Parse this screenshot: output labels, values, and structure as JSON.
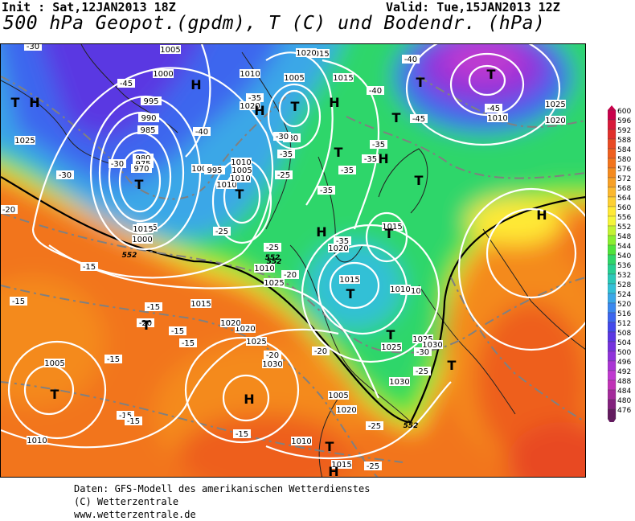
{
  "header": {
    "init": "Init : Sat,12JAN2013 18Z",
    "valid": "Valid: Tue,15JAN2013 12Z",
    "title": "500 hPa Geopot.(gpdm), T (C) und Bodendr. (hPa)"
  },
  "footer": {
    "line1": "Daten: GFS-Modell des amerikanischen Wetterdienstes",
    "line2": "(C) Wetterzentrale",
    "line3": "www.wetterzentrale.de"
  },
  "legend": {
    "levels": [
      "600",
      "596",
      "592",
      "588",
      "584",
      "580",
      "576",
      "572",
      "568",
      "564",
      "560",
      "556",
      "552",
      "548",
      "544",
      "540",
      "536",
      "532",
      "528",
      "524",
      "520",
      "516",
      "512",
      "508",
      "504",
      "500",
      "496",
      "492",
      "488",
      "484",
      "480",
      "476"
    ],
    "colors": [
      "#c8004a",
      "#d71a3a",
      "#e0302c",
      "#e84a24",
      "#ee5f1f",
      "#f2741d",
      "#f48a1f",
      "#f7a026",
      "#fbb82f",
      "#fdd034",
      "#ffe936",
      "#f4f53a",
      "#c2f232",
      "#89ee2f",
      "#4ee33b",
      "#2fd66a",
      "#27cf93",
      "#2bc8b8",
      "#33c0d6",
      "#3aa7e7",
      "#3b88ee",
      "#3d66ee",
      "#4348ea",
      "#5a37e2",
      "#7532dd",
      "#8f33da",
      "#a935d4",
      "#bf3ad0",
      "#c033b6",
      "#a32b9a",
      "#82217c",
      "#621a5e"
    ]
  },
  "map": {
    "pressure_labels": [
      "1005",
      "1000",
      "995",
      "990",
      "985",
      "980",
      "975",
      "970",
      "1025",
      "1015",
      "1020",
      "1010",
      "1005",
      "1000",
      "995",
      "1010",
      "1010",
      "1005",
      "1010",
      "1005",
      "1000",
      "1015",
      "1020",
      "1015",
      "1010",
      "1025",
      "1020",
      "1030",
      "1005",
      "1010",
      "1015",
      "1020",
      "1025",
      "1015",
      "1010",
      "1025",
      "1030",
      "1005",
      "1010",
      "1015",
      "1020",
      "1025",
      "1030",
      "1020",
      "1015",
      "1010",
      "1025",
      "1020",
      "1010"
    ],
    "temperature_labels": [
      "-30",
      "-45",
      "-45",
      "-40",
      "-40",
      "-45",
      "-40",
      "-35",
      "-35",
      "-35",
      "-35",
      "-30",
      "-30",
      "-25",
      "-35",
      "-35",
      "-35",
      "-25",
      "-30",
      "-30",
      "-20",
      "-20",
      "-25",
      "-20",
      "-15",
      "-20",
      "-15",
      "-15",
      "-15",
      "-15",
      "-15",
      "-15",
      "-15",
      "-15",
      "-20",
      "-25",
      "-30",
      "-25",
      "-25"
    ],
    "height_labels": [
      "552",
      "552",
      "552",
      "552"
    ],
    "high_symbol": "H",
    "low_symbol": "T"
  }
}
